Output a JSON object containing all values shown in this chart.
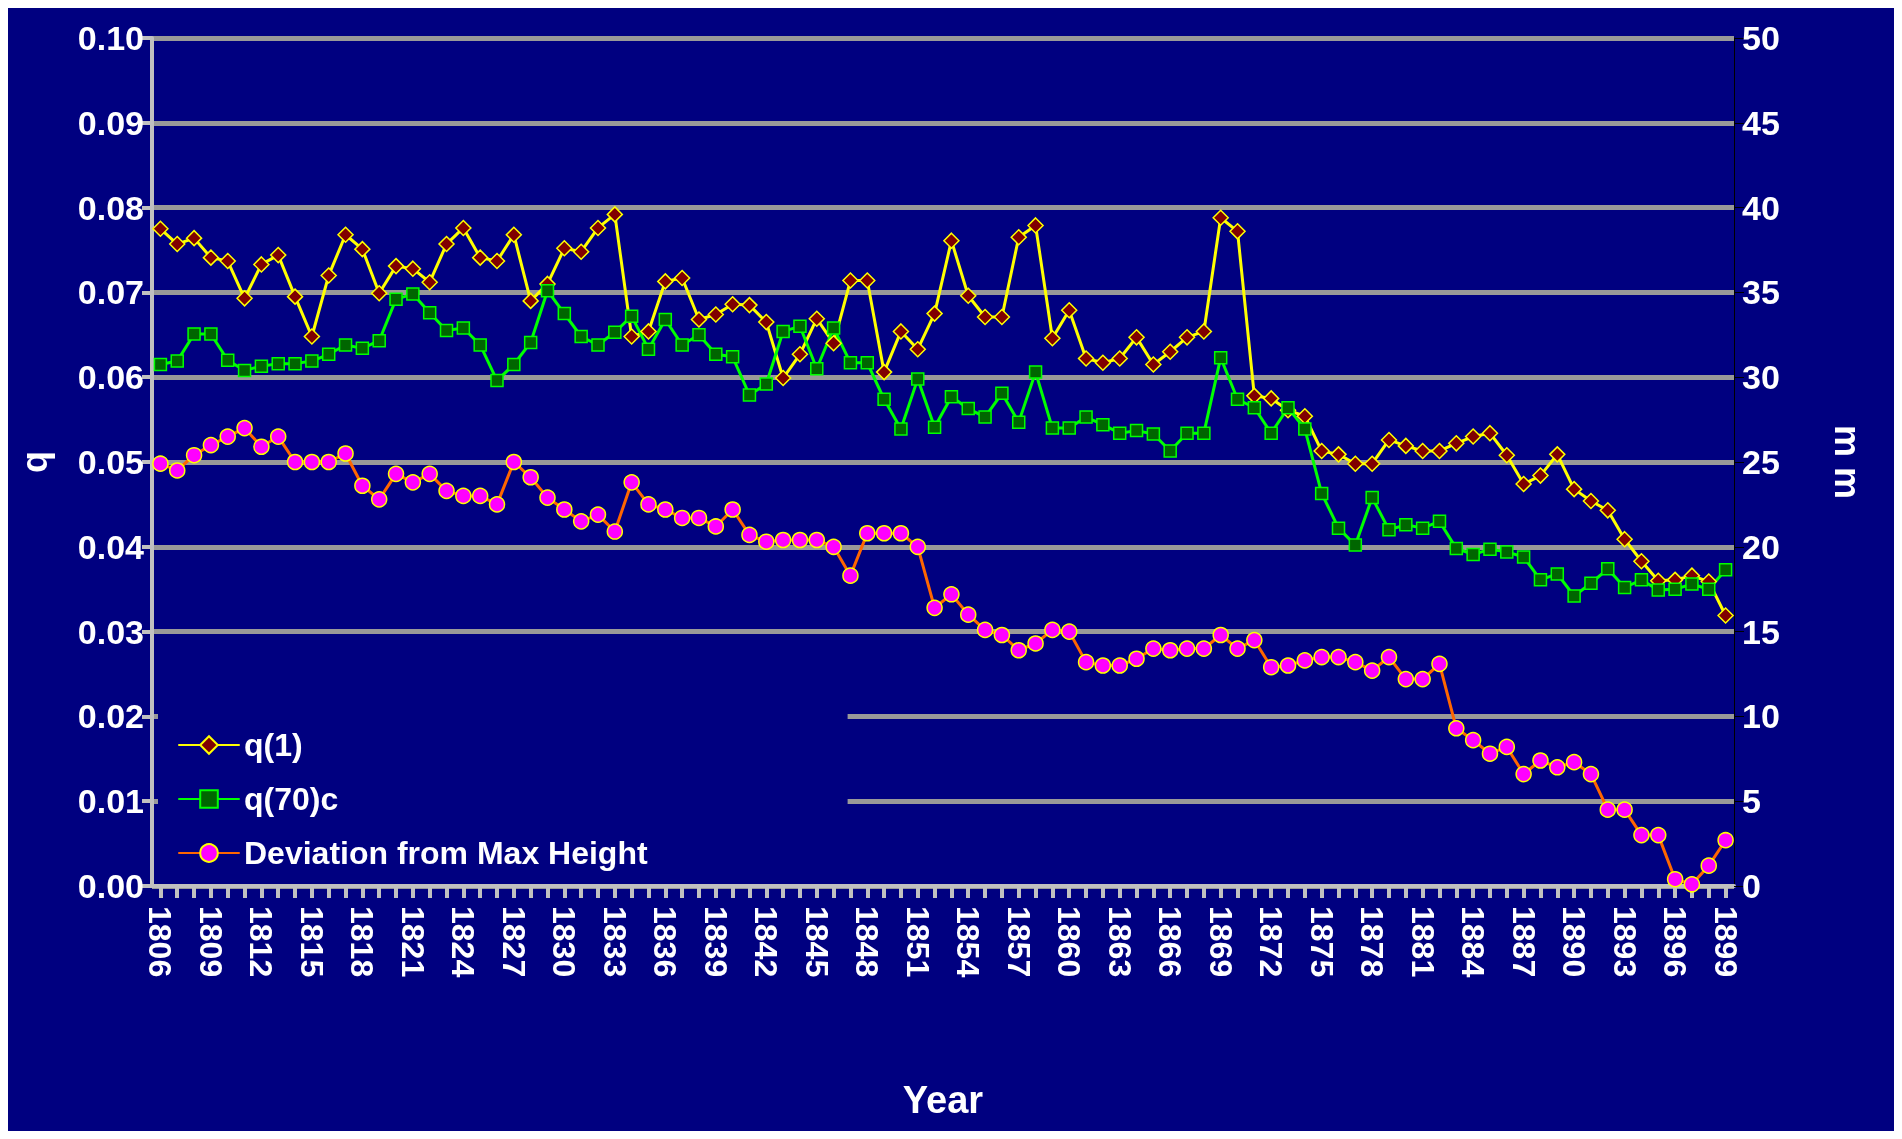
{
  "chart_data": {
    "type": "line",
    "xlabel": "Year",
    "ylabel": "q",
    "y2label": "m m",
    "categories": [
      "1806",
      null,
      null,
      "1809",
      null,
      null,
      "1812",
      null,
      null,
      "1815",
      null,
      null,
      "1818",
      null,
      null,
      "1821",
      null,
      null,
      "1824",
      null,
      null,
      "1827",
      null,
      null,
      "1830",
      null,
      null,
      "1833",
      null,
      null,
      "1836",
      null,
      null,
      "1839",
      null,
      null,
      "1842",
      null,
      null,
      "1845",
      null,
      null,
      "1848",
      null,
      null,
      "1851",
      null,
      null,
      "1854",
      null,
      null,
      "1857",
      null,
      null,
      "1860",
      null,
      null,
      "1863",
      null,
      null,
      "1866",
      null,
      null,
      "1869",
      null,
      null,
      "1872",
      null,
      null,
      "1875",
      null,
      null,
      "1878",
      null,
      null,
      "1881",
      null,
      null,
      "1884",
      null,
      null,
      "1887",
      null,
      null,
      "1890",
      null,
      null,
      "1893",
      null,
      null,
      "1896",
      null,
      null,
      "1899"
    ],
    "series": [
      {
        "name": "q(1)",
        "color": "#ffff00",
        "marker": "diamond",
        "values": [
          0.0775,
          0.0757,
          0.0764,
          0.0741,
          0.0737,
          0.0693,
          0.0733,
          0.0744,
          0.0695,
          0.0648,
          0.072,
          0.0768,
          0.0751,
          0.0699,
          0.0731,
          0.0728,
          0.0712,
          0.0757,
          0.0776,
          0.0741,
          0.0737,
          0.0768,
          0.069,
          0.071,
          0.0752,
          0.0748,
          0.0776,
          0.0792,
          0.0648,
          0.0654,
          0.0713,
          0.0717,
          0.0668,
          0.0674,
          0.0686,
          0.0685,
          0.0665,
          0.0599,
          0.0627,
          0.0669,
          0.064,
          0.0714,
          0.0714,
          0.0606,
          0.0654,
          0.0633,
          0.0675,
          0.0761,
          0.0696,
          0.0671,
          0.0671,
          0.0765,
          0.0779,
          0.0646,
          0.0679,
          0.0622,
          0.0617,
          0.0622,
          0.0647,
          0.0615,
          0.063,
          0.0647,
          0.0654,
          0.0788,
          0.0772,
          0.0578,
          0.0575,
          0.0561,
          0.0554,
          0.0513,
          0.0509,
          0.0498,
          0.0498,
          0.0526,
          0.0519,
          0.0513,
          0.0513,
          0.0522,
          0.053,
          0.0534,
          0.0508,
          0.0474,
          0.0484,
          0.0509,
          0.0468,
          0.0454,
          0.0443,
          0.0409,
          0.0383,
          0.036,
          0.0361,
          0.0366,
          0.0359,
          0.0319
        ]
      },
      {
        "name": "q(70)c",
        "color": "#00ff00",
        "marker": "square",
        "values": [
          0.0615,
          0.0619,
          0.0651,
          0.0651,
          0.062,
          0.0608,
          0.0613,
          0.0616,
          0.0616,
          0.0619,
          0.0627,
          0.0638,
          0.0634,
          0.0643,
          0.0692,
          0.0698,
          0.0676,
          0.0655,
          0.0658,
          0.0638,
          0.0596,
          0.0615,
          0.0641,
          0.0702,
          0.0675,
          0.0648,
          0.0638,
          0.0653,
          0.0672,
          0.0633,
          0.0668,
          0.0638,
          0.065,
          0.0627,
          0.0624,
          0.0579,
          0.0592,
          0.0654,
          0.066,
          0.061,
          0.0658,
          0.0617,
          0.0617,
          0.0574,
          0.0539,
          0.0598,
          0.0541,
          0.0577,
          0.0563,
          0.0553,
          0.0581,
          0.0547,
          0.0606,
          0.054,
          0.054,
          0.0553,
          0.0544,
          0.0534,
          0.0537,
          0.0533,
          0.0513,
          0.0534,
          0.0534,
          0.0623,
          0.0574,
          0.0564,
          0.0534,
          0.0564,
          0.0539,
          0.0463,
          0.0422,
          0.0402,
          0.0458,
          0.042,
          0.0426,
          0.0422,
          0.043,
          0.0398,
          0.0391,
          0.0397,
          0.0394,
          0.0388,
          0.0361,
          0.0368,
          0.0342,
          0.0357,
          0.0374,
          0.0352,
          0.0361,
          0.0349,
          0.035,
          0.0356,
          0.035,
          0.0373
        ]
      },
      {
        "name": "Deviation from Max Height",
        "color": "#ff6600",
        "marker": "circle",
        "axis": "y2",
        "values": [
          24.9,
          24.5,
          25.4,
          26.0,
          26.5,
          27.0,
          25.9,
          26.5,
          25.0,
          25.0,
          25.0,
          25.5,
          23.6,
          22.8,
          24.3,
          23.8,
          24.3,
          23.3,
          23.0,
          23.0,
          22.5,
          25.0,
          24.1,
          22.9,
          22.2,
          21.5,
          21.9,
          20.9,
          23.8,
          22.5,
          22.2,
          21.7,
          21.7,
          21.2,
          22.2,
          20.7,
          20.3,
          20.4,
          20.4,
          20.4,
          20.0,
          18.3,
          20.8,
          20.8,
          20.8,
          20.0,
          16.4,
          17.2,
          16.0,
          15.1,
          14.8,
          13.9,
          14.3,
          15.1,
          15.0,
          13.2,
          13.0,
          13.0,
          13.4,
          14.0,
          13.9,
          14.0,
          14.0,
          14.8,
          14.0,
          14.5,
          12.9,
          13.0,
          13.3,
          13.5,
          13.5,
          13.2,
          12.7,
          13.5,
          12.2,
          12.2,
          13.1,
          9.3,
          8.6,
          7.8,
          8.2,
          6.6,
          7.4,
          7.0,
          7.3,
          6.6,
          4.5,
          4.5,
          3.0,
          3.0,
          0.4,
          0.1,
          1.2,
          2.7
        ]
      }
    ],
    "ylim": [
      0,
      0.1
    ],
    "yticks": [
      {
        "value": 0,
        "label": "0.00"
      },
      {
        "value": 0.01,
        "label": "0.01"
      },
      {
        "value": 0.02,
        "label": "0.02"
      },
      {
        "value": 0.03,
        "label": "0.03"
      },
      {
        "value": 0.04,
        "label": "0.04"
      },
      {
        "value": 0.05,
        "label": "0.05"
      },
      {
        "value": 0.06,
        "label": "0.06"
      },
      {
        "value": 0.07,
        "label": "0.07"
      },
      {
        "value": 0.08,
        "label": "0.08"
      },
      {
        "value": 0.09,
        "label": "0.09"
      },
      {
        "value": 0.1,
        "label": "0.10"
      }
    ],
    "y2lim": [
      0,
      50
    ],
    "y2ticks": [
      0,
      5,
      10,
      15,
      20,
      25,
      30,
      35,
      40,
      45,
      50
    ],
    "grid": "y",
    "legend": "bottom left",
    "line_style": "solid"
  }
}
